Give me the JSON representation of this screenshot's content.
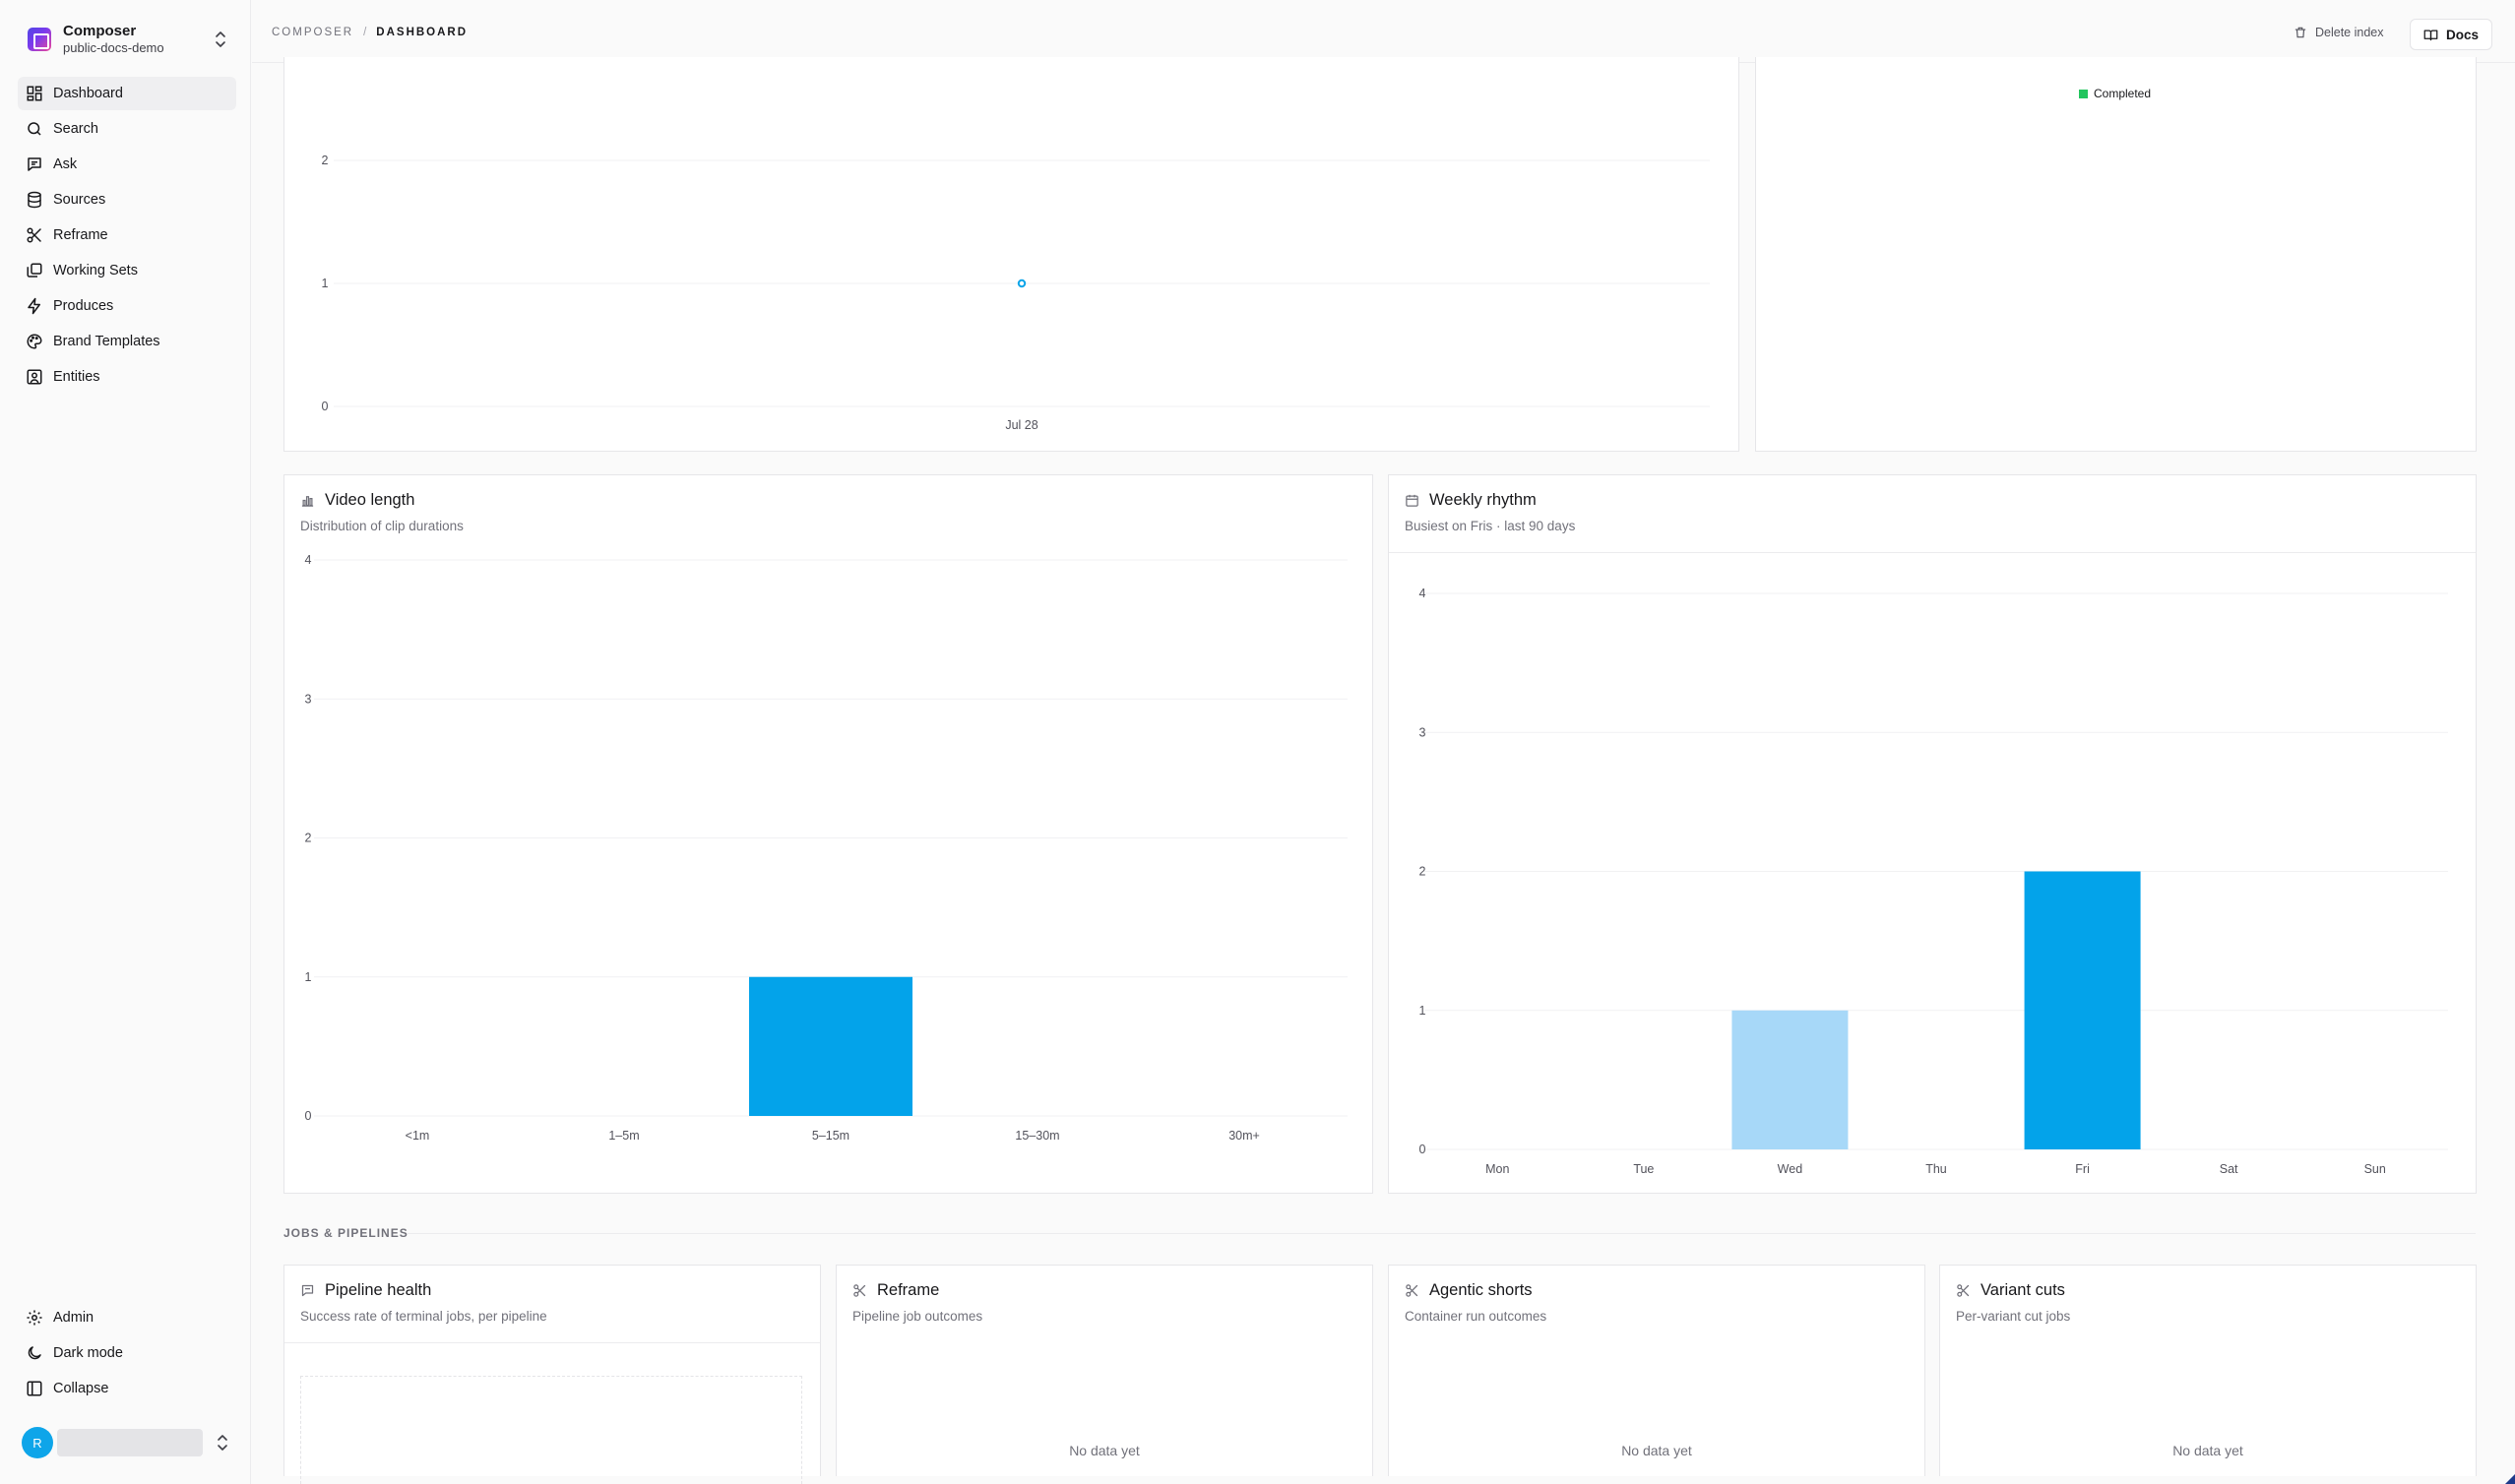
{
  "workspace": {
    "name": "Composer",
    "project": "public-docs-demo"
  },
  "nav": {
    "items": [
      {
        "label": "Dashboard",
        "icon": "grid-icon",
        "active": true
      },
      {
        "label": "Search",
        "icon": "search-icon"
      },
      {
        "label": "Ask",
        "icon": "chat-icon"
      },
      {
        "label": "Sources",
        "icon": "database-icon"
      },
      {
        "label": "Reframe",
        "icon": "scissors-icon"
      },
      {
        "label": "Working Sets",
        "icon": "layers-icon"
      },
      {
        "label": "Produces",
        "icon": "bolt-icon"
      },
      {
        "label": "Brand Templates",
        "icon": "palette-icon"
      },
      {
        "label": "Entities",
        "icon": "user-square-icon"
      }
    ],
    "bottom": [
      {
        "label": "Admin",
        "icon": "gear-icon"
      },
      {
        "label": "Dark mode",
        "icon": "moon-icon"
      },
      {
        "label": "Collapse",
        "icon": "panel-icon"
      }
    ]
  },
  "user": {
    "initial": "R"
  },
  "topbar": {
    "breadcrumb": [
      "COMPOSER",
      "DASHBOARD"
    ],
    "separator": "/",
    "delete_label": "Delete index",
    "docs_label": "Docs"
  },
  "status_legend": {
    "label": "Completed",
    "color": "#22c55e"
  },
  "video_length": {
    "title": "Video length",
    "subtitle": "Distribution of clip durations"
  },
  "weekly_rhythm": {
    "title": "Weekly rhythm",
    "subtitle": "Busiest on Fris · last 90 days"
  },
  "jobs_section_label": "JOBS & PIPELINES",
  "pipeline_health": {
    "title": "Pipeline health",
    "subtitle": "Success rate of terminal jobs, per pipeline"
  },
  "reframe_card": {
    "title": "Reframe",
    "subtitle": "Pipeline job outcomes",
    "empty": "No data yet"
  },
  "agentic_shorts": {
    "title": "Agentic shorts",
    "subtitle": "Container run outcomes",
    "empty": "No data yet"
  },
  "variant_cuts": {
    "title": "Variant cuts",
    "subtitle": "Per-variant cut jobs",
    "empty": "No data yet"
  },
  "chart_data": [
    {
      "id": "activity",
      "type": "scatter",
      "x": [
        "Jul 28"
      ],
      "y": [
        1
      ],
      "yticks": [
        0,
        1,
        2
      ],
      "ylim": [
        0,
        2.6
      ],
      "color": "#0ea5e9",
      "grid": true
    },
    {
      "id": "video_length",
      "type": "bar",
      "categories": [
        "<1m",
        "1–5m",
        "5–15m",
        "15–30m",
        "30m+"
      ],
      "values": [
        0,
        0,
        1,
        0,
        0
      ],
      "yticks": [
        0,
        1,
        2,
        3,
        4
      ],
      "ylim": [
        0,
        4
      ],
      "color": "#03a3ea",
      "grid": true
    },
    {
      "id": "weekly_rhythm",
      "type": "bar",
      "categories": [
        "Mon",
        "Tue",
        "Wed",
        "Thu",
        "Fri",
        "Sat",
        "Sun"
      ],
      "values": [
        0,
        0,
        1,
        0,
        2,
        0,
        0
      ],
      "yticks": [
        0,
        1,
        2,
        3,
        4
      ],
      "ylim": [
        0,
        4
      ],
      "colors": [
        "#a7d8f8",
        "#a7d8f8",
        "#a7d8f8",
        "#a7d8f8",
        "#03a3ea",
        "#a7d8f8",
        "#a7d8f8"
      ],
      "grid": true
    }
  ]
}
